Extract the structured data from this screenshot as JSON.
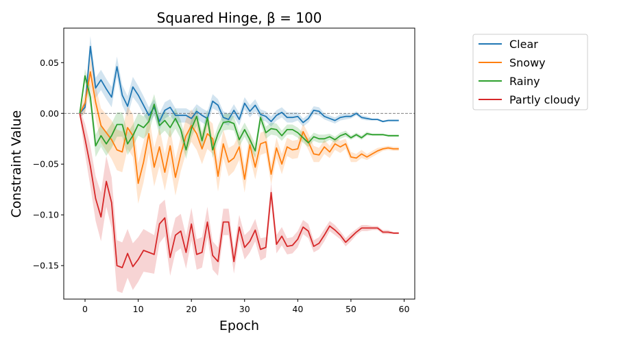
{
  "chart_data": {
    "type": "line",
    "title": "Squared Hinge, β =  100",
    "xlabel": "Epoch",
    "ylabel": "Constraint Value",
    "xlim": [
      -4,
      62
    ],
    "ylim": [
      -0.183,
      0.084
    ],
    "xticks": [
      0,
      10,
      20,
      30,
      40,
      50,
      60
    ],
    "xtick_labels": [
      "0",
      "10",
      "20",
      "30",
      "40",
      "50",
      "60"
    ],
    "yticks": [
      0.05,
      0.0,
      -0.05,
      -0.1,
      -0.15
    ],
    "ytick_labels": [
      "0.05",
      "0.00",
      "−0.05",
      "−0.10",
      "−0.15"
    ],
    "reference_line": 0.0,
    "legend_position": "outside-right-top",
    "x_start": -1,
    "series": [
      {
        "name": "Clear",
        "color": "#1f77b4",
        "values": [
          0.0,
          0.006,
          0.066,
          0.025,
          0.033,
          0.024,
          0.016,
          0.046,
          0.018,
          0.007,
          0.026,
          0.018,
          0.008,
          -0.002,
          0.006,
          -0.008,
          0.003,
          0.006,
          -0.002,
          -0.002,
          -0.002,
          -0.005,
          0.002,
          -0.002,
          -0.005,
          0.012,
          0.008,
          -0.004,
          -0.006,
          0.003,
          -0.006,
          0.01,
          0.002,
          0.008,
          -0.001,
          -0.003,
          -0.008,
          -0.002,
          0.001,
          -0.004,
          -0.004,
          -0.003,
          -0.009,
          -0.005,
          0.003,
          0.002,
          -0.003,
          -0.005,
          -0.007,
          -0.004,
          -0.003,
          -0.003,
          0.0,
          -0.004,
          -0.005,
          -0.006,
          -0.006,
          -0.008,
          -0.007,
          -0.007,
          -0.007
        ],
        "band": [
          0.004,
          0.006,
          0.01,
          0.01,
          0.01,
          0.01,
          0.01,
          0.01,
          0.01,
          0.01,
          0.01,
          0.009,
          0.009,
          0.008,
          0.008,
          0.008,
          0.008,
          0.008,
          0.007,
          0.007,
          0.007,
          0.007,
          0.007,
          0.007,
          0.007,
          0.007,
          0.006,
          0.006,
          0.006,
          0.006,
          0.006,
          0.006,
          0.006,
          0.006,
          0.005,
          0.005,
          0.005,
          0.005,
          0.005,
          0.005,
          0.005,
          0.004,
          0.004,
          0.004,
          0.004,
          0.004,
          0.003,
          0.003,
          0.003,
          0.003,
          0.003,
          0.002,
          0.002,
          0.002,
          0.002,
          0.001,
          0.001,
          0.001,
          0.001,
          0.001,
          0.001
        ]
      },
      {
        "name": "Snowy",
        "color": "#ff7f0e",
        "values": [
          0.0,
          0.01,
          0.041,
          0.011,
          -0.012,
          -0.019,
          -0.026,
          -0.036,
          -0.038,
          -0.014,
          -0.022,
          -0.069,
          -0.048,
          -0.02,
          -0.053,
          -0.033,
          -0.058,
          -0.032,
          -0.063,
          -0.04,
          -0.022,
          -0.012,
          -0.02,
          -0.035,
          -0.02,
          -0.025,
          -0.062,
          -0.03,
          -0.048,
          -0.044,
          -0.033,
          -0.065,
          -0.031,
          -0.053,
          -0.03,
          -0.028,
          -0.06,
          -0.034,
          -0.05,
          -0.033,
          -0.036,
          -0.035,
          -0.018,
          -0.028,
          -0.04,
          -0.041,
          -0.033,
          -0.038,
          -0.03,
          -0.033,
          -0.03,
          -0.043,
          -0.044,
          -0.04,
          -0.043,
          -0.04,
          -0.037,
          -0.035,
          -0.034,
          -0.035,
          -0.035
        ],
        "band": [
          0.004,
          0.01,
          0.014,
          0.016,
          0.017,
          0.018,
          0.019,
          0.02,
          0.02,
          0.021,
          0.021,
          0.02,
          0.02,
          0.019,
          0.019,
          0.019,
          0.018,
          0.018,
          0.018,
          0.017,
          0.017,
          0.016,
          0.016,
          0.015,
          0.015,
          0.015,
          0.015,
          0.014,
          0.014,
          0.013,
          0.013,
          0.013,
          0.012,
          0.012,
          0.011,
          0.011,
          0.01,
          0.01,
          0.01,
          0.009,
          0.009,
          0.009,
          0.008,
          0.008,
          0.008,
          0.007,
          0.007,
          0.006,
          0.006,
          0.006,
          0.005,
          0.005,
          0.004,
          0.004,
          0.003,
          0.003,
          0.003,
          0.002,
          0.002,
          0.002,
          0.002
        ]
      },
      {
        "name": "Rainy",
        "color": "#2ca02c",
        "values": [
          0.0,
          0.037,
          0.016,
          -0.032,
          -0.022,
          -0.03,
          -0.022,
          -0.011,
          -0.011,
          -0.03,
          -0.022,
          -0.011,
          -0.014,
          -0.008,
          0.009,
          -0.012,
          -0.007,
          -0.014,
          -0.005,
          -0.016,
          -0.036,
          -0.015,
          -0.003,
          -0.027,
          -0.004,
          -0.036,
          -0.02,
          -0.009,
          -0.008,
          -0.01,
          -0.026,
          -0.016,
          -0.026,
          -0.037,
          -0.004,
          -0.019,
          -0.015,
          -0.016,
          -0.022,
          -0.016,
          -0.016,
          -0.019,
          -0.024,
          -0.029,
          -0.023,
          -0.025,
          -0.025,
          -0.023,
          -0.026,
          -0.022,
          -0.02,
          -0.024,
          -0.021,
          -0.024,
          -0.02,
          -0.021,
          -0.021,
          -0.021,
          -0.022,
          -0.022,
          -0.022
        ],
        "band": [
          0.003,
          0.007,
          0.01,
          0.011,
          0.011,
          0.012,
          0.012,
          0.012,
          0.012,
          0.011,
          0.011,
          0.011,
          0.011,
          0.011,
          0.01,
          0.01,
          0.01,
          0.01,
          0.01,
          0.009,
          0.009,
          0.009,
          0.009,
          0.009,
          0.008,
          0.008,
          0.008,
          0.008,
          0.008,
          0.007,
          0.007,
          0.007,
          0.007,
          0.007,
          0.006,
          0.006,
          0.006,
          0.006,
          0.005,
          0.005,
          0.005,
          0.005,
          0.005,
          0.004,
          0.004,
          0.004,
          0.004,
          0.003,
          0.003,
          0.003,
          0.003,
          0.002,
          0.002,
          0.002,
          0.002,
          0.001,
          0.001,
          0.001,
          0.001,
          0.001,
          0.001
        ]
      },
      {
        "name": "Partly cloudy",
        "color": "#d62728",
        "values": [
          0.0,
          -0.025,
          -0.052,
          -0.084,
          -0.102,
          -0.067,
          -0.088,
          -0.15,
          -0.152,
          -0.138,
          -0.151,
          -0.144,
          -0.135,
          -0.137,
          -0.139,
          -0.109,
          -0.103,
          -0.142,
          -0.12,
          -0.116,
          -0.137,
          -0.109,
          -0.139,
          -0.137,
          -0.107,
          -0.14,
          -0.146,
          -0.107,
          -0.107,
          -0.146,
          -0.112,
          -0.132,
          -0.126,
          -0.115,
          -0.134,
          -0.132,
          -0.078,
          -0.129,
          -0.121,
          -0.131,
          -0.13,
          -0.124,
          -0.112,
          -0.116,
          -0.131,
          -0.128,
          -0.12,
          -0.111,
          -0.115,
          -0.12,
          -0.127,
          -0.122,
          -0.117,
          -0.113,
          -0.113,
          -0.113,
          -0.113,
          -0.117,
          -0.117,
          -0.118,
          -0.118
        ],
        "band": [
          0.004,
          0.015,
          0.02,
          0.022,
          0.024,
          0.025,
          0.025,
          0.025,
          0.025,
          0.024,
          0.023,
          0.022,
          0.021,
          0.02,
          0.019,
          0.019,
          0.018,
          0.018,
          0.017,
          0.017,
          0.016,
          0.016,
          0.015,
          0.015,
          0.015,
          0.014,
          0.014,
          0.013,
          0.013,
          0.012,
          0.012,
          0.012,
          0.011,
          0.011,
          0.011,
          0.01,
          0.01,
          0.009,
          0.009,
          0.008,
          0.008,
          0.008,
          0.007,
          0.007,
          0.006,
          0.006,
          0.006,
          0.005,
          0.005,
          0.004,
          0.004,
          0.004,
          0.003,
          0.003,
          0.003,
          0.002,
          0.002,
          0.002,
          0.002,
          0.001,
          0.001
        ]
      }
    ]
  }
}
